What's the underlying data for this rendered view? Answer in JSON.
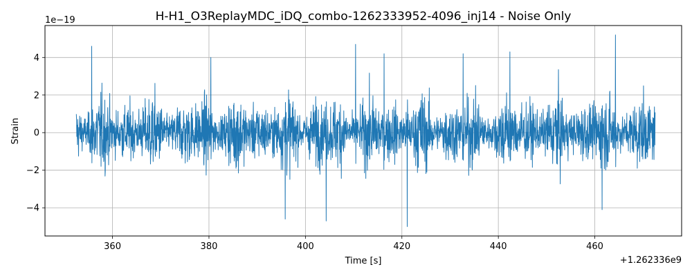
{
  "chart_data": {
    "type": "line",
    "title": "H-H1_O3ReplayMDC_iDQ_combo-1262333952-4096_inj14 - Noise Only",
    "xlabel": "Time [s]",
    "ylabel": "Strain",
    "x_offset_label": "+1.262336e9",
    "y_scale_label": "1e−19",
    "xlim": [
      346.0,
      478.0
    ],
    "ylim": [
      -5.5,
      5.7
    ],
    "xticks": [
      360,
      380,
      400,
      420,
      440,
      460
    ],
    "xtick_labels": [
      "360",
      "380",
      "400",
      "420",
      "440",
      "460"
    ],
    "yticks": [
      -4,
      -2,
      0,
      2,
      4
    ],
    "ytick_labels": [
      "−4",
      "−2",
      "0",
      "2",
      "4"
    ],
    "grid": true,
    "series": [
      {
        "color": "#1f77b4",
        "x_range": [
          352.5,
          472.5
        ],
        "typical_envelope": [
          -2.5,
          2.5
        ],
        "peaks": [
          {
            "x": 355.7,
            "y": 4.6
          },
          {
            "x": 380.4,
            "y": 4.0
          },
          {
            "x": 395.8,
            "y": -4.6
          },
          {
            "x": 404.3,
            "y": -4.7
          },
          {
            "x": 410.4,
            "y": 4.7
          },
          {
            "x": 416.3,
            "y": 4.2
          },
          {
            "x": 421.1,
            "y": -5.0
          },
          {
            "x": 432.7,
            "y": 4.2
          },
          {
            "x": 442.4,
            "y": 4.3
          },
          {
            "x": 464.3,
            "y": 5.2
          },
          {
            "x": 461.5,
            "y": -4.1
          }
        ]
      }
    ]
  }
}
